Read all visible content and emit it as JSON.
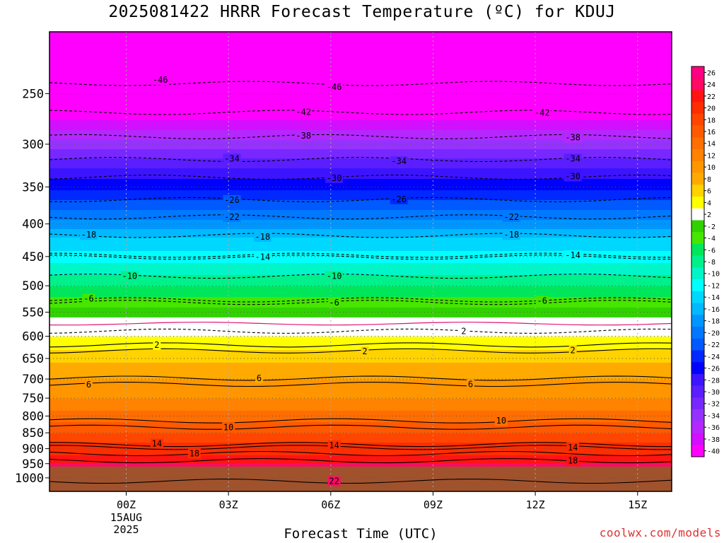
{
  "header": {
    "title": "2025081422 HRRR Forecast Temperature (ºC) for KDUJ"
  },
  "footer": {
    "credit": "coolwx.com/models"
  },
  "chart_data": {
    "type": "heatmap",
    "title": "2025081422 HRRR Forecast Temperature (ºC) for KDUJ",
    "xlabel": "Forecast Time (UTC)",
    "ylabel": "",
    "units": "ºC",
    "x_range_hours": [
      -2.25,
      16
    ],
    "y_axis": {
      "scale": "log-pressure",
      "range_hPa": [
        1050,
        200
      ]
    },
    "y_ticks": [
      "250",
      "300",
      "350",
      "400",
      "450",
      "500",
      "550",
      "600",
      "650",
      "700",
      "750",
      "800",
      "850",
      "900",
      "950",
      "1000"
    ],
    "x_ticks": [
      {
        "label": "00Z",
        "hour": 0,
        "sublabels": [
          "15AUG",
          "2025"
        ]
      },
      {
        "label": "03Z",
        "hour": 3,
        "sublabels": []
      },
      {
        "label": "06Z",
        "hour": 6,
        "sublabels": []
      },
      {
        "label": "09Z",
        "hour": 9,
        "sublabels": []
      },
      {
        "label": "12Z",
        "hour": 12,
        "sublabels": []
      },
      {
        "label": "15Z",
        "hour": 15,
        "sublabels": []
      }
    ],
    "grid": true,
    "surface_pressure_hPa": 960,
    "colorbar": {
      "position": "right",
      "labels": [
        "26",
        "24",
        "22",
        "20",
        "18",
        "16",
        "14",
        "12",
        "10",
        "8",
        "6",
        "4",
        "2",
        "-2",
        "-4",
        "-6",
        "-8",
        "-10",
        "-12",
        "-14",
        "-16",
        "-18",
        "-20",
        "-22",
        "-24",
        "-26",
        "-28",
        "-30",
        "-32",
        "-34",
        "-36",
        "-38",
        "-40"
      ],
      "bins": [
        {
          "lo": 24,
          "color": "#ff0080"
        },
        {
          "lo": 22,
          "color": "#ff0a64"
        },
        {
          "lo": 20,
          "color": "#ff1414"
        },
        {
          "lo": 18,
          "color": "#ff2d00"
        },
        {
          "lo": 16,
          "color": "#ff4600"
        },
        {
          "lo": 14,
          "color": "#ff5a00"
        },
        {
          "lo": 12,
          "color": "#ff6e00"
        },
        {
          "lo": 10,
          "color": "#ff8200"
        },
        {
          "lo": 8,
          "color": "#ff9600"
        },
        {
          "lo": 6,
          "color": "#ffaa00"
        },
        {
          "lo": 4,
          "color": "#ffd200"
        },
        {
          "lo": 2,
          "color": "#ffff00"
        },
        {
          "lo": -2,
          "color": "#ffffff"
        },
        {
          "lo": -4,
          "color": "#32d200"
        },
        {
          "lo": -6,
          "color": "#46e600"
        },
        {
          "lo": -8,
          "color": "#00e65a"
        },
        {
          "lo": -10,
          "color": "#00f08c"
        },
        {
          "lo": -12,
          "color": "#00f5c8"
        },
        {
          "lo": -14,
          "color": "#00ffff"
        },
        {
          "lo": -16,
          "color": "#00d7ff"
        },
        {
          "lo": -18,
          "color": "#00b9ff"
        },
        {
          "lo": -20,
          "color": "#0096ff"
        },
        {
          "lo": -22,
          "color": "#0078ff"
        },
        {
          "lo": -24,
          "color": "#005aff"
        },
        {
          "lo": -26,
          "color": "#0028ff"
        },
        {
          "lo": -28,
          "color": "#0000ff"
        },
        {
          "lo": -30,
          "color": "#3c14ff"
        },
        {
          "lo": -32,
          "color": "#5a1eff"
        },
        {
          "lo": -34,
          "color": "#7828ff"
        },
        {
          "lo": -36,
          "color": "#9632ff"
        },
        {
          "lo": -38,
          "color": "#b428ff"
        },
        {
          "lo": -40,
          "color": "#d20fff"
        },
        {
          "lo": -99,
          "color": "#ff00ff"
        }
      ]
    },
    "ground_color": "#a0522d",
    "freezing_line_color": "#e0147a",
    "profile": [
      {
        "hPa": 200,
        "t": -57
      },
      {
        "hPa": 220,
        "t": -52
      },
      {
        "hPa": 240,
        "t": -47
      },
      {
        "hPa": 260,
        "t": -43
      },
      {
        "hPa": 280,
        "t": -39
      },
      {
        "hPa": 300,
        "t": -35
      },
      {
        "hPa": 320,
        "t": -31
      },
      {
        "hPa": 340,
        "t": -28
      },
      {
        "hPa": 360,
        "t": -25
      },
      {
        "hPa": 380,
        "t": -22
      },
      {
        "hPa": 400,
        "t": -19
      },
      {
        "hPa": 420,
        "t": -16
      },
      {
        "hPa": 450,
        "t": -13
      },
      {
        "hPa": 480,
        "t": -10
      },
      {
        "hPa": 500,
        "t": -8
      },
      {
        "hPa": 520,
        "t": -6
      },
      {
        "hPa": 550,
        "t": -3
      },
      {
        "hPa": 580,
        "t": 0
      },
      {
        "hPa": 600,
        "t": 2
      },
      {
        "hPa": 630,
        "t": 4
      },
      {
        "hPa": 660,
        "t": 6
      },
      {
        "hPa": 700,
        "t": 8
      },
      {
        "hPa": 750,
        "t": 10
      },
      {
        "hPa": 800,
        "t": 13
      },
      {
        "hPa": 850,
        "t": 16
      },
      {
        "hPa": 880,
        "t": 18
      },
      {
        "hPa": 920,
        "t": 20
      },
      {
        "hPa": 960,
        "t": 23
      }
    ],
    "contour_labels": [
      {
        "text": "46",
        "hour": 1.0,
        "hPa": 238
      },
      {
        "text": "46",
        "hour": 6.1,
        "hPa": 244
      },
      {
        "text": "42",
        "hour": 5.2,
        "hPa": 267
      },
      {
        "text": "42",
        "hour": 12.2,
        "hPa": 268
      },
      {
        "text": "38",
        "hour": 5.2,
        "hPa": 291
      },
      {
        "text": "38",
        "hour": 13.1,
        "hPa": 293
      },
      {
        "text": "34",
        "hour": 3.1,
        "hPa": 316
      },
      {
        "text": "34",
        "hour": 8.0,
        "hPa": 319
      },
      {
        "text": "34",
        "hour": 13.1,
        "hPa": 316
      },
      {
        "text": "30",
        "hour": 6.1,
        "hPa": 339
      },
      {
        "text": "30",
        "hour": 13.1,
        "hPa": 337
      },
      {
        "text": "26",
        "hour": 3.1,
        "hPa": 367
      },
      {
        "text": "26",
        "hour": 8.0,
        "hPa": 366
      },
      {
        "text": "22",
        "hour": 3.1,
        "hPa": 390
      },
      {
        "text": "22",
        "hour": 11.3,
        "hPa": 390
      },
      {
        "text": "18",
        "hour": -1.1,
        "hPa": 416
      },
      {
        "text": "18",
        "hour": 4.0,
        "hPa": 419
      },
      {
        "text": "18",
        "hour": 11.3,
        "hPa": 416
      },
      {
        "text": "14",
        "hour": 4.0,
        "hPa": 451
      },
      {
        "text": "14",
        "hour": 13.1,
        "hPa": 448
      },
      {
        "text": "10",
        "hour": 0.1,
        "hPa": 483
      },
      {
        "text": "10",
        "hour": 6.1,
        "hPa": 483
      },
      {
        "text": "6",
        "hour": -1.1,
        "hPa": 524
      },
      {
        "text": "6",
        "hour": 6.1,
        "hPa": 531
      },
      {
        "text": "6",
        "hour": 12.2,
        "hPa": 528
      },
      {
        "text": "2",
        "hour": 9.9,
        "hPa": 589
      },
      {
        "text": "2",
        "hour": 0.9,
        "hPa": 619
      },
      {
        "text": "2",
        "hour": 7.0,
        "hPa": 634
      },
      {
        "text": "2",
        "hour": 13.1,
        "hPa": 631
      },
      {
        "text": "6",
        "hour": -1.1,
        "hPa": 714
      },
      {
        "text": "6",
        "hour": 3.9,
        "hPa": 698
      },
      {
        "text": "6",
        "hour": 10.1,
        "hPa": 713
      },
      {
        "text": "10",
        "hour": 3.0,
        "hPa": 833
      },
      {
        "text": "10",
        "hour": 11.0,
        "hPa": 814
      },
      {
        "text": "14",
        "hour": 0.9,
        "hPa": 884
      },
      {
        "text": "14",
        "hour": 6.1,
        "hPa": 889
      },
      {
        "text": "14",
        "hour": 13.1,
        "hPa": 896
      },
      {
        "text": "18",
        "hour": 2.0,
        "hPa": 916
      },
      {
        "text": "18",
        "hour": 13.1,
        "hPa": 940
      },
      {
        "text": "22",
        "hour": 6.1,
        "hPa": 1012
      }
    ]
  }
}
